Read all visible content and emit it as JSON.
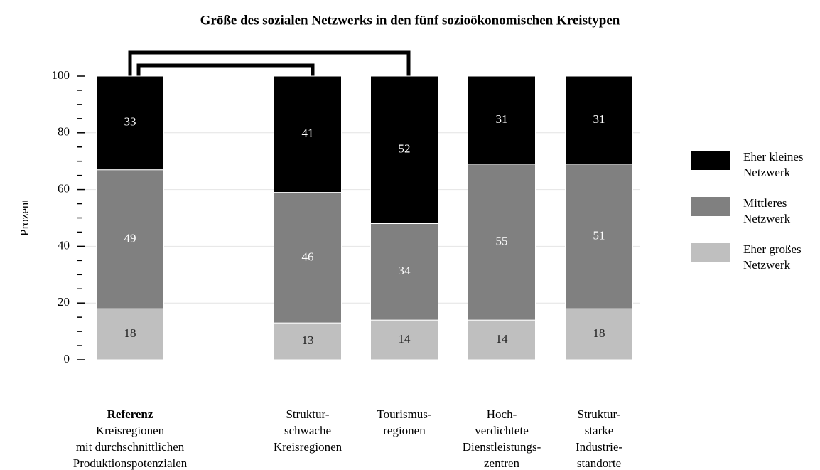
{
  "chart_data": {
    "type": "stacked_bar",
    "title": "Größe des sozialen Netzwerks in den fünf sozioökonomischen Kreistypen",
    "ylabel": "Prozent",
    "categories": [
      [
        "Referenz",
        "Kreisregionen",
        "mit durchschnittlichen",
        "Produktionspotenzialen"
      ],
      [
        "Struktur-",
        "schwache",
        "Kreisregionen"
      ],
      [
        "Tourismus-",
        "regionen"
      ],
      [
        "Hoch-",
        "verdichtete",
        "Dienstleistungs-",
        "zentren"
      ],
      [
        "Struktur-",
        "starke",
        "Industrie-",
        "standorte"
      ]
    ],
    "series": [
      {
        "name": "Eher großes Netzwerk",
        "color": "#bfbfbf",
        "label_color": "#222222",
        "values": [
          18,
          13,
          14,
          14,
          18
        ]
      },
      {
        "name": "Mittleres Netzwerk",
        "color": "#808080",
        "label_color": "#ffffff",
        "values": [
          49,
          46,
          34,
          55,
          51
        ]
      },
      {
        "name": "Eher kleines Netzwerk",
        "color": "#000000",
        "label_color": "#ffffff",
        "values": [
          33,
          41,
          52,
          31,
          31
        ]
      }
    ],
    "ylim": [
      0,
      100
    ],
    "yticks": [
      0,
      20,
      40,
      60,
      80,
      100
    ],
    "minor_yticks": [
      5,
      10,
      15,
      25,
      30,
      35,
      45,
      50,
      55,
      65,
      70,
      75,
      85,
      90,
      95
    ],
    "grid": true,
    "legend": "right"
  }
}
